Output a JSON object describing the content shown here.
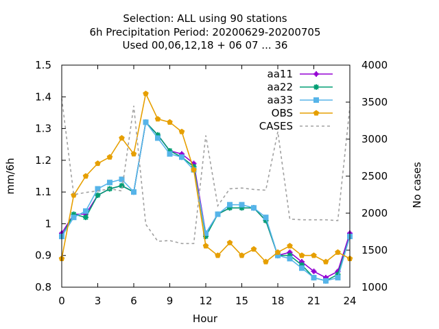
{
  "chart_data": {
    "type": "line",
    "title_lines": [
      "Selection: ALL using    90 stations",
      "6h Precipitation   Period: 20200629-20200705",
      "Used  00,06,12,18 + 06 07 ... 36"
    ],
    "xlabel": "Hour",
    "ylabel": "mm/6h",
    "y2label": "No cases",
    "xlim": [
      0,
      24
    ],
    "ylim": [
      0.8,
      1.5
    ],
    "y2lim": [
      1000,
      4000
    ],
    "x_ticks": [
      "0",
      "3",
      "6",
      "9",
      "12",
      "15",
      "18",
      "21",
      "24"
    ],
    "y_ticks": [
      "0.8",
      "0.9",
      "1",
      "1.1",
      "1.2",
      "1.3",
      "1.4",
      "1.5"
    ],
    "y2_ticks": [
      "1000",
      "1500",
      "2000",
      "2500",
      "3000",
      "3500",
      "4000"
    ],
    "x": [
      0,
      1,
      2,
      3,
      4,
      5,
      6,
      7,
      8,
      9,
      10,
      11,
      12,
      13,
      14,
      15,
      16,
      17,
      18,
      19,
      20,
      21,
      22,
      23,
      24
    ],
    "grid": false,
    "legend_position": "top-right",
    "series": [
      {
        "name": "aa11",
        "color": "#9400d3",
        "axis": "y1",
        "marker": "plus",
        "values": [
          0.97,
          1.03,
          1.03,
          1.09,
          1.11,
          1.12,
          1.1,
          1.32,
          1.28,
          1.23,
          1.22,
          1.19,
          0.97,
          1.03,
          1.05,
          1.05,
          1.05,
          1.01,
          0.9,
          0.91,
          0.88,
          0.85,
          0.83,
          0.85,
          0.97
        ]
      },
      {
        "name": "aa22",
        "color": "#009e73",
        "axis": "y1",
        "marker": "star",
        "values": [
          0.96,
          1.03,
          1.02,
          1.09,
          1.11,
          1.12,
          1.1,
          1.32,
          1.28,
          1.23,
          1.21,
          1.18,
          0.96,
          1.03,
          1.05,
          1.05,
          1.05,
          1.01,
          0.9,
          0.9,
          0.87,
          0.83,
          0.82,
          0.84,
          0.96
        ]
      },
      {
        "name": "aa33",
        "color": "#56b4e9",
        "axis": "y1",
        "marker": "square",
        "values": [
          0.96,
          1.02,
          1.04,
          1.11,
          1.13,
          1.14,
          1.1,
          1.32,
          1.27,
          1.22,
          1.21,
          1.17,
          0.97,
          1.03,
          1.06,
          1.06,
          1.05,
          1.02,
          0.9,
          0.89,
          0.86,
          0.83,
          0.82,
          0.83,
          0.96
        ]
      },
      {
        "name": "OBS",
        "color": "#e69f00",
        "axis": "y1",
        "marker": "pentagon",
        "values": [
          0.89,
          1.09,
          1.15,
          1.19,
          1.21,
          1.27,
          1.22,
          1.41,
          1.33,
          1.32,
          1.29,
          1.17,
          0.93,
          0.9,
          0.94,
          0.9,
          0.92,
          0.88,
          0.91,
          0.93,
          0.9,
          0.9,
          0.88,
          0.91,
          0.89
        ]
      },
      {
        "name": "CASES",
        "color": "#a0a0a0",
        "axis": "y2",
        "marker": "none",
        "dashed": true,
        "values": [
          3550,
          2250,
          2280,
          2300,
          2330,
          2300,
          3450,
          1850,
          1620,
          1630,
          1590,
          1590,
          3050,
          2100,
          2330,
          2340,
          2320,
          2310,
          3100,
          1920,
          1910,
          1910,
          1910,
          1900,
          3430
        ]
      }
    ]
  }
}
